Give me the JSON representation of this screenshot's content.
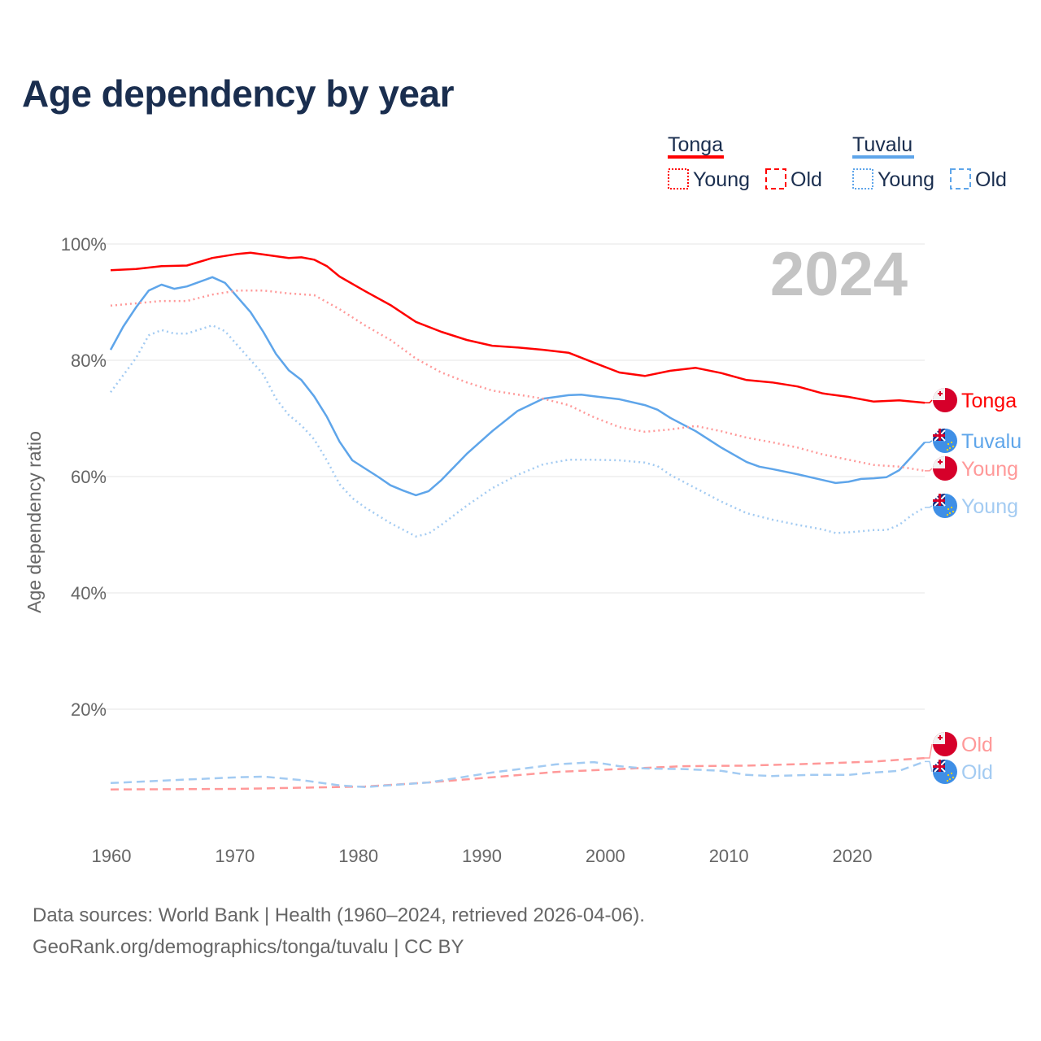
{
  "title": "Age dependency by year",
  "year_watermark": "2024",
  "source_line1": "Data sources: World Bank | Health (1960–2024, retrieved 2026-04-06).",
  "source_line2": "GeoRank.org/demographics/tonga/tuvalu | CC BY",
  "legend": {
    "groups": [
      {
        "name": "Tonga",
        "color": "#ff0000",
        "young": "Young",
        "old": "Old"
      },
      {
        "name": "Tuvalu",
        "color": "#5ea5ea",
        "young": "Young",
        "old": "Old"
      }
    ]
  },
  "chart_data": {
    "type": "line",
    "title": "Age dependency by year",
    "xlabel": "",
    "ylabel": "Age dependency ratio",
    "xlim": [
      1960,
      2024
    ],
    "ylim": [
      0,
      100
    ],
    "x_ticks": [
      "1960",
      "1970",
      "1980",
      "1990",
      "2000",
      "2010",
      "2020"
    ],
    "y_ticks": [
      "20%",
      "40%",
      "60%",
      "80%",
      "100%"
    ],
    "grid": true,
    "series": [
      {
        "name": "Tonga",
        "end_label": "Tonga",
        "country": "Tonga",
        "style": "solid",
        "color": "#ff0000",
        "x": [
          1960,
          1962,
          1964,
          1966,
          1968,
          1970,
          1971,
          1972,
          1974,
          1975,
          1976,
          1977,
          1978,
          1980,
          1982,
          1984,
          1986,
          1988,
          1990,
          1992,
          1994,
          1996,
          1998,
          2000,
          2002,
          2004,
          2006,
          2008,
          2010,
          2012,
          2014,
          2016,
          2018,
          2020,
          2022,
          2024
        ],
        "y": [
          95.5,
          95.7,
          96.2,
          96.3,
          97.6,
          98.3,
          98.5,
          98.2,
          97.6,
          97.7,
          97.3,
          96.2,
          94.4,
          91.9,
          89.5,
          86.6,
          84.9,
          83.5,
          82.5,
          82.2,
          81.8,
          81.3,
          79.6,
          77.9,
          77.3,
          78.2,
          78.7,
          77.8,
          76.6,
          76.2,
          75.5,
          74.3,
          73.7,
          72.9,
          73.1,
          72.7
        ]
      },
      {
        "name": "Tuvalu",
        "end_label": "Tuvalu",
        "country": "Tuvalu",
        "style": "solid",
        "color": "#5ea5ea",
        "x": [
          1960,
          1961,
          1962,
          1963,
          1964,
          1965,
          1966,
          1968,
          1969,
          1970,
          1971,
          1972,
          1973,
          1974,
          1975,
          1976,
          1977,
          1978,
          1979,
          1980,
          1981,
          1982,
          1983,
          1984,
          1985,
          1986,
          1988,
          1990,
          1992,
          1994,
          1996,
          1997,
          1998,
          2000,
          2002,
          2003,
          2004,
          2006,
          2008,
          2010,
          2011,
          2012,
          2014,
          2016,
          2017,
          2018,
          2019,
          2020,
          2021,
          2022,
          2023,
          2024
        ],
        "y": [
          81.8,
          85.8,
          89.1,
          92.0,
          93.0,
          92.3,
          92.7,
          94.3,
          93.3,
          90.8,
          88.3,
          84.9,
          81.1,
          78.3,
          76.6,
          73.8,
          70.3,
          66.0,
          62.8,
          61.4,
          60.0,
          58.5,
          57.6,
          56.8,
          57.5,
          59.4,
          63.9,
          67.8,
          71.3,
          73.4,
          74.0,
          74.1,
          73.8,
          73.3,
          72.3,
          71.5,
          70.1,
          67.8,
          65.0,
          62.5,
          61.7,
          61.3,
          60.4,
          59.4,
          58.9,
          59.1,
          59.6,
          59.7,
          59.9,
          61.1,
          63.5,
          65.9
        ]
      },
      {
        "name": "Tonga Young",
        "end_label": "Young",
        "country": "Tonga",
        "style": "dotted",
        "color": "#ff9999",
        "x": [
          1960,
          1964,
          1966,
          1968,
          1970,
          1972,
          1974,
          1976,
          1978,
          1980,
          1982,
          1984,
          1986,
          1988,
          1990,
          1992,
          1994,
          1996,
          1998,
          2000,
          2002,
          2004,
          2006,
          2008,
          2010,
          2012,
          2014,
          2016,
          2018,
          2020,
          2022,
          2024
        ],
        "y": [
          89.4,
          90.2,
          90.2,
          91.3,
          92.0,
          92.0,
          91.5,
          91.2,
          88.8,
          86.0,
          83.5,
          80.3,
          77.9,
          76.2,
          74.8,
          74.1,
          73.4,
          72.3,
          70.2,
          68.5,
          67.7,
          68.1,
          68.7,
          67.8,
          66.7,
          65.9,
          65.0,
          63.8,
          62.9,
          62.0,
          61.7,
          61.0
        ]
      },
      {
        "name": "Tuvalu Young",
        "end_label": "Young",
        "country": "Tuvalu",
        "style": "dotted",
        "color": "#a3cbf2",
        "x": [
          1960,
          1962,
          1963,
          1964,
          1965,
          1966,
          1968,
          1969,
          1970,
          1972,
          1973,
          1974,
          1975,
          1976,
          1977,
          1978,
          1979,
          1980,
          1982,
          1984,
          1985,
          1986,
          1988,
          1990,
          1992,
          1994,
          1996,
          1998,
          2000,
          2002,
          2003,
          2004,
          2006,
          2008,
          2010,
          2012,
          2014,
          2016,
          2017,
          2018,
          2020,
          2021,
          2022,
          2023,
          2024
        ],
        "y": [
          74.5,
          80.4,
          84.3,
          85.2,
          84.6,
          84.6,
          86.0,
          85.0,
          82.5,
          77.6,
          73.4,
          70.6,
          68.8,
          66.4,
          62.8,
          58.7,
          56.3,
          54.7,
          52.0,
          49.7,
          50.2,
          51.7,
          55.0,
          58.0,
          60.3,
          62.1,
          62.9,
          62.9,
          62.8,
          62.4,
          61.8,
          60.3,
          58.0,
          55.7,
          53.7,
          52.6,
          51.7,
          50.9,
          50.3,
          50.4,
          50.8,
          50.8,
          51.7,
          53.4,
          54.7
        ]
      },
      {
        "name": "Tonga Old",
        "end_label": "Old",
        "country": "Tonga",
        "style": "dashed",
        "color": "#ff9999",
        "x": [
          1960,
          1970,
          1980,
          1985,
          1990,
          1995,
          2000,
          2005,
          2010,
          2015,
          2020,
          2024
        ],
        "y": [
          6.2,
          6.3,
          6.7,
          7.4,
          8.3,
          9.2,
          9.7,
          10.2,
          10.3,
          10.6,
          11.0,
          11.6
        ]
      },
      {
        "name": "Tuvalu Old",
        "end_label": "Old",
        "country": "Tuvalu",
        "style": "dashed",
        "color": "#a3cbf2",
        "x": [
          1960,
          1965,
          1970,
          1972,
          1975,
          1978,
          1980,
          1985,
          1990,
          1995,
          1998,
          2000,
          2002,
          2005,
          2008,
          2010,
          2012,
          2015,
          2018,
          2020,
          2022,
          2024
        ],
        "y": [
          7.3,
          7.8,
          8.3,
          8.4,
          7.8,
          6.9,
          6.6,
          7.4,
          9.1,
          10.5,
          10.9,
          10.2,
          9.8,
          9.7,
          9.4,
          8.7,
          8.5,
          8.7,
          8.7,
          9.1,
          9.4,
          11.0
        ]
      }
    ]
  }
}
